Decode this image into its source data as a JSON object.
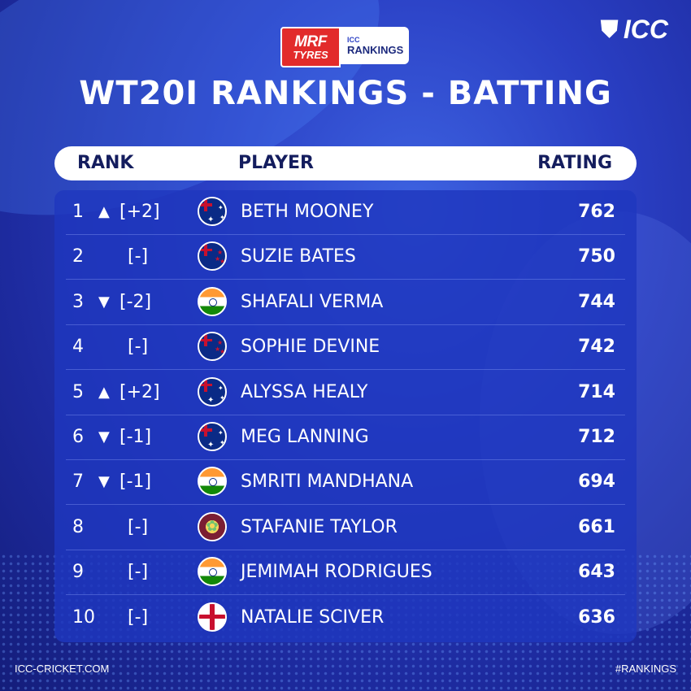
{
  "brand": {
    "sponsor_top": "MRF",
    "sponsor_bottom": "TYRES",
    "rankings_small": "ICC",
    "rankings_label": "RANKINGS",
    "icc_logo": "ICC",
    "icc_mark_icon": "icc-stumps-icon"
  },
  "title": "WT20I RANKINGS - BATTING",
  "header": {
    "rank": "RANK",
    "player": "PLAYER",
    "rating": "RATING"
  },
  "colors": {
    "background": "#2a3fc4",
    "panel": "#1e37be",
    "header_bg": "#ffffff",
    "header_text": "#141d5e"
  },
  "rows": [
    {
      "rank": "1",
      "arrow": "▲",
      "change": "[+2]",
      "flag": "australia-flag-icon",
      "name": "BETH MOONEY",
      "rating": "762"
    },
    {
      "rank": "2",
      "arrow": "",
      "change": "[-]",
      "flag": "new-zealand-flag-icon",
      "name": "SUZIE BATES",
      "rating": "750"
    },
    {
      "rank": "3",
      "arrow": "▼",
      "change": "[-2]",
      "flag": "india-flag-icon",
      "name": "SHAFALI VERMA",
      "rating": "744"
    },
    {
      "rank": "4",
      "arrow": "",
      "change": "[-]",
      "flag": "new-zealand-flag-icon",
      "name": "SOPHIE DEVINE",
      "rating": "742"
    },
    {
      "rank": "5",
      "arrow": "▲",
      "change": "[+2]",
      "flag": "australia-flag-icon",
      "name": "ALYSSA HEALY",
      "rating": "714"
    },
    {
      "rank": "6",
      "arrow": "▼",
      "change": "[-1]",
      "flag": "australia-flag-icon",
      "name": "MEG LANNING",
      "rating": "712"
    },
    {
      "rank": "7",
      "arrow": "▼",
      "change": "[-1]",
      "flag": "india-flag-icon",
      "name": "SMRITI MANDHANA",
      "rating": "694"
    },
    {
      "rank": "8",
      "arrow": "",
      "change": "[-]",
      "flag": "west-indies-flag-icon",
      "name": "STAFANIE TAYLOR",
      "rating": "661"
    },
    {
      "rank": "9",
      "arrow": "",
      "change": "[-]",
      "flag": "india-flag-icon",
      "name": "JEMIMAH RODRIGUES",
      "rating": "643"
    },
    {
      "rank": "10",
      "arrow": "",
      "change": "[-]",
      "flag": "england-flag-icon",
      "name": "NATALIE SCIVER",
      "rating": "636"
    }
  ],
  "footer": {
    "website": "ICC-CRICKET.COM",
    "hashtag": "#RANKINGS"
  }
}
